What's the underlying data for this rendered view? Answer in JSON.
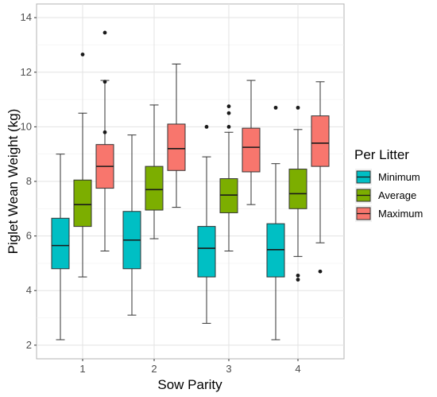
{
  "chart_data": {
    "type": "boxplot",
    "xlabel": "Sow Parity",
    "ylabel": "Piglet Wean Weight (kg)",
    "categories": [
      "1",
      "2",
      "3",
      "4"
    ],
    "ylim": [
      1.5,
      14.5
    ],
    "yticks": [
      2,
      4,
      6,
      8,
      10,
      12,
      14
    ],
    "grid": true,
    "legend": {
      "title": "Per Litter",
      "placement": "right",
      "entries": [
        "Minimum",
        "Average",
        "Maximum"
      ]
    },
    "series": [
      {
        "name": "Minimum",
        "color": "#00BFC4",
        "boxes": [
          {
            "category": "1",
            "whisker_low": 2.2,
            "q1": 4.8,
            "median": 5.65,
            "q3": 6.65,
            "whisker_high": 9.0,
            "outliers": []
          },
          {
            "category": "2",
            "whisker_low": 3.1,
            "q1": 4.8,
            "median": 5.85,
            "q3": 6.9,
            "whisker_high": 9.7,
            "outliers": []
          },
          {
            "category": "3",
            "whisker_low": 2.8,
            "q1": 4.5,
            "median": 5.55,
            "q3": 6.35,
            "whisker_high": 8.9,
            "outliers": [
              10.0
            ]
          },
          {
            "category": "4",
            "whisker_low": 2.2,
            "q1": 4.5,
            "median": 5.5,
            "q3": 6.45,
            "whisker_high": 8.65,
            "outliers": [
              10.7
            ]
          }
        ]
      },
      {
        "name": "Average",
        "color": "#7CAE00",
        "boxes": [
          {
            "category": "1",
            "whisker_low": 4.5,
            "q1": 6.35,
            "median": 7.15,
            "q3": 8.05,
            "whisker_high": 10.5,
            "outliers": [
              12.65
            ]
          },
          {
            "category": "2",
            "whisker_low": 5.9,
            "q1": 6.95,
            "median": 7.7,
            "q3": 8.55,
            "whisker_high": 10.8,
            "outliers": []
          },
          {
            "category": "3",
            "whisker_low": 5.45,
            "q1": 6.85,
            "median": 7.5,
            "q3": 8.1,
            "whisker_high": 9.8,
            "outliers": [
              10.0,
              10.5,
              10.75
            ]
          },
          {
            "category": "4",
            "whisker_low": 5.25,
            "q1": 7.0,
            "median": 7.55,
            "q3": 8.45,
            "whisker_high": 9.9,
            "outliers": [
              10.7,
              4.55,
              4.4
            ]
          }
        ]
      },
      {
        "name": "Maximum",
        "color": "#F8766D",
        "boxes": [
          {
            "category": "1",
            "whisker_low": 5.45,
            "q1": 7.75,
            "median": 8.55,
            "q3": 9.35,
            "whisker_high": 11.7,
            "outliers": [
              11.65,
              9.8,
              13.45
            ]
          },
          {
            "category": "2",
            "whisker_low": 7.05,
            "q1": 8.4,
            "median": 9.2,
            "q3": 10.1,
            "whisker_high": 12.3,
            "outliers": []
          },
          {
            "category": "3",
            "whisker_low": 7.15,
            "q1": 8.35,
            "median": 9.25,
            "q3": 9.95,
            "whisker_high": 11.7,
            "outliers": []
          },
          {
            "category": "4",
            "whisker_low": 5.75,
            "q1": 8.55,
            "median": 9.4,
            "q3": 10.4,
            "whisker_high": 11.65,
            "outliers": [
              4.7
            ]
          }
        ]
      }
    ]
  }
}
